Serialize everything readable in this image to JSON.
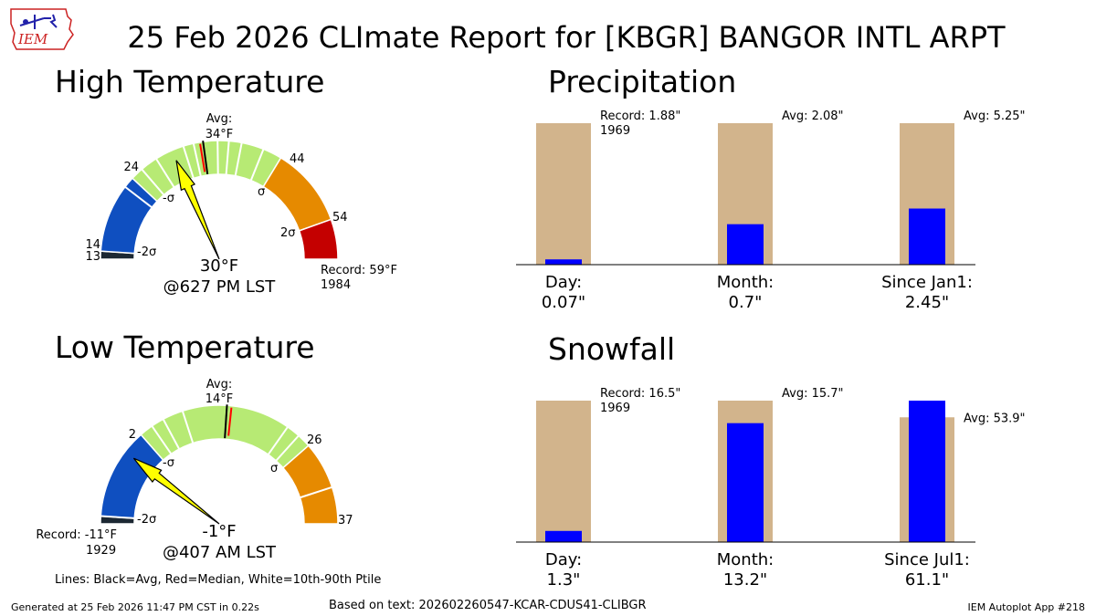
{
  "title": "25 Feb 2026 CLImate Report for [KBGR] BANGOR INTL ARPT",
  "logo_text": "IEM",
  "colors": {
    "bar_avg": "#d2b48c",
    "bar_obs": "#0000ff",
    "band_low_extreme": "#1c2833",
    "band_cold": "#0f4fc0",
    "band_normal": "#b7ea74",
    "band_warm": "#e68a00",
    "band_hot": "#c40000",
    "needle": "#ffff00",
    "avg_line": "#000000",
    "median_line": "#ff0000",
    "pct_line": "#ffffff"
  },
  "high": {
    "title": "High Temperature",
    "value_line": "30°F",
    "time_line": "@627 PM LST",
    "avg_label": "Avg:",
    "avg_value_label": "34°F",
    "record_label": "Record: 59°F",
    "record_year": "1984"
  },
  "low": {
    "title": "Low Temperature",
    "value_line": "-1°F",
    "time_line": "@407 AM LST",
    "avg_label": "Avg:",
    "avg_value_label": "14°F",
    "record_label": "Record: -11°F",
    "record_year": "1929"
  },
  "precip": {
    "title": "Precipitation",
    "cats": [
      "Day:",
      "Month:",
      "Since Jan1:"
    ],
    "obs_labels": [
      "0.07\"",
      "0.7\"",
      "2.45\""
    ],
    "annotations": [
      "Record: 1.88\"",
      "Avg: 2.08\"",
      "Avg: 5.25\""
    ],
    "annotation_year": "1969"
  },
  "snow": {
    "title": "Snowfall",
    "cats": [
      "Day:",
      "Month:",
      "Since Jul1:"
    ],
    "obs_labels": [
      "1.3\"",
      "13.2\"",
      "61.1\""
    ],
    "annotations": [
      "Record: 16.5\"",
      "Avg: 15.7\"",
      "Avg: 53.9\""
    ],
    "annotation_year": "1969"
  },
  "footnote": "Lines: Black=Avg, Red=Median, White=10th-90th Ptile",
  "basis": "Based on text: 202602260547-KCAR-CDUS41-CLIBGR",
  "footer_left": "Generated at 25 Feb 2026 11:47 PM CST in 0.22s",
  "footer_right": "IEM Autoplot App #218",
  "chart_data": [
    {
      "type": "gauge",
      "name": "High Temperature",
      "min": 13,
      "max": 59,
      "band_edges": [
        13,
        14,
        24,
        44,
        54,
        59
      ],
      "band_labels": [
        "13",
        "14",
        "24",
        "44",
        "54"
      ],
      "sigma_labels": [
        "-2σ",
        "-σ",
        "σ",
        "2σ"
      ],
      "value": 30,
      "avg": 34,
      "median": 33.6,
      "percentile_lines": [
        22.6,
        25.6,
        27.8,
        31.5,
        32.8,
        35.8,
        37.2,
        38.8,
        41.6
      ],
      "record": 59,
      "record_year": 1984
    },
    {
      "type": "gauge",
      "name": "Low Temperature",
      "min": -11,
      "max": 37,
      "band_edges": [
        -11,
        -10,
        2,
        26,
        37
      ],
      "band_labels": [
        "2",
        "26",
        "37"
      ],
      "sigma_labels": [
        "-2σ",
        "-σ",
        "σ"
      ],
      "value": -1,
      "avg": 14,
      "median": 14.6,
      "percentile_lines": [
        -10,
        3.8,
        5.5,
        8.2,
        22.4,
        24.2
      ],
      "extra_ticks": [
        32.2
      ],
      "record": -11,
      "record_year": 1929
    },
    {
      "type": "bar",
      "name": "Precipitation",
      "categories": [
        "Day",
        "Month",
        "Since Jan1"
      ],
      "series": [
        {
          "name": "Avg/Record",
          "values": [
            1.88,
            2.08,
            5.25
          ]
        },
        {
          "name": "Observed",
          "values": [
            0.07,
            0.7,
            2.45
          ]
        }
      ]
    },
    {
      "type": "bar",
      "name": "Snowfall",
      "categories": [
        "Day",
        "Month",
        "Since Jul1"
      ],
      "series": [
        {
          "name": "Avg/Record",
          "values": [
            16.5,
            15.7,
            53.9
          ]
        },
        {
          "name": "Observed",
          "values": [
            1.3,
            13.2,
            61.1
          ]
        }
      ]
    }
  ]
}
